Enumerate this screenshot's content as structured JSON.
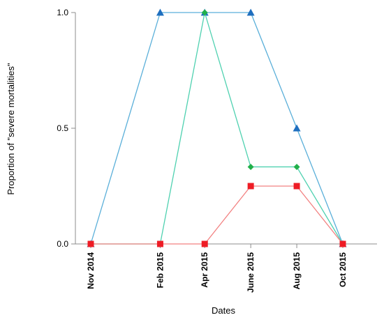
{
  "chart_data": {
    "type": "line",
    "xlabel": "Dates",
    "ylabel": "Proportion of \"severe mortalities\"",
    "ylim": [
      0,
      1
    ],
    "y_ticks": [
      0.0,
      0.5,
      1.0
    ],
    "y_tick_labels": [
      "0.0",
      "0.5",
      "1.0"
    ],
    "x": [
      "2014-11-01",
      "2015-02-01",
      "2015-04-01",
      "2015-06-01",
      "2015-08-01",
      "2015-10-01"
    ],
    "x_tick_labels": [
      "Nov 2014",
      "Feb 2015",
      "Apr 2015",
      "June 2015",
      "Aug 2015",
      "Oct 2015"
    ],
    "grid": false,
    "legend": "none",
    "series": [
      {
        "marker": "triangle",
        "color": "#5aafd9",
        "marker_color": "#1f6fbf",
        "values": [
          0,
          1,
          1,
          1,
          0.5,
          0
        ]
      },
      {
        "marker": "diamond",
        "color": "#4fd1b0",
        "marker_color": "#21b04a",
        "values": [
          0,
          0,
          1,
          0.333,
          0.333,
          0
        ]
      },
      {
        "marker": "square",
        "color": "#f28080",
        "marker_color": "#ee1c25",
        "values": [
          0,
          0,
          0,
          0.25,
          0.25,
          0
        ]
      }
    ]
  }
}
